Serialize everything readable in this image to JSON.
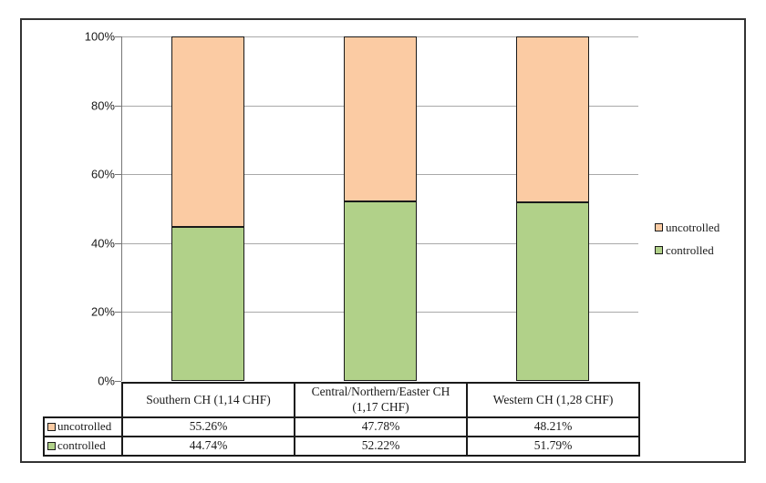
{
  "chart_data": {
    "type": "bar",
    "stacked": true,
    "stacking": "percent",
    "title": "",
    "categories": [
      "Southern CH (1,14 CHF)",
      "Central/Northern/Easter CH (1,17 CHF)",
      "Western CH (1,28 CHF)"
    ],
    "series": [
      {
        "name": "uncotrolled",
        "color": "#FBCBA3",
        "values": [
          55.26,
          47.78,
          48.21
        ]
      },
      {
        "name": "controlled",
        "color": "#B1D189",
        "values": [
          44.74,
          52.22,
          51.79
        ]
      }
    ],
    "y_ticks": [
      "100%",
      "80%",
      "60%",
      "40%",
      "20%",
      "0%"
    ],
    "ylim": [
      0,
      100
    ],
    "grid": "horizontal",
    "gridline_color": "#A9A9A9",
    "legend_position": "right"
  },
  "legend": {
    "items": [
      {
        "label": "uncotrolled",
        "color": "#FBCBA3"
      },
      {
        "label": "controlled",
        "color": "#B1D189"
      }
    ]
  },
  "data_table": {
    "columns": [
      "Southern CH (1,14 CHF)",
      "Central/Northern/Easter CH (1,17 CHF)",
      "Western CH (1,28 CHF)"
    ],
    "rows": [
      {
        "label": "uncotrolled",
        "swatch": "#FBCBA3",
        "values": [
          "55.26%",
          "47.78%",
          "48.21%"
        ]
      },
      {
        "label": "controlled",
        "swatch": "#B1D189",
        "values": [
          "44.74%",
          "52.22%",
          "51.79%"
        ]
      }
    ]
  }
}
